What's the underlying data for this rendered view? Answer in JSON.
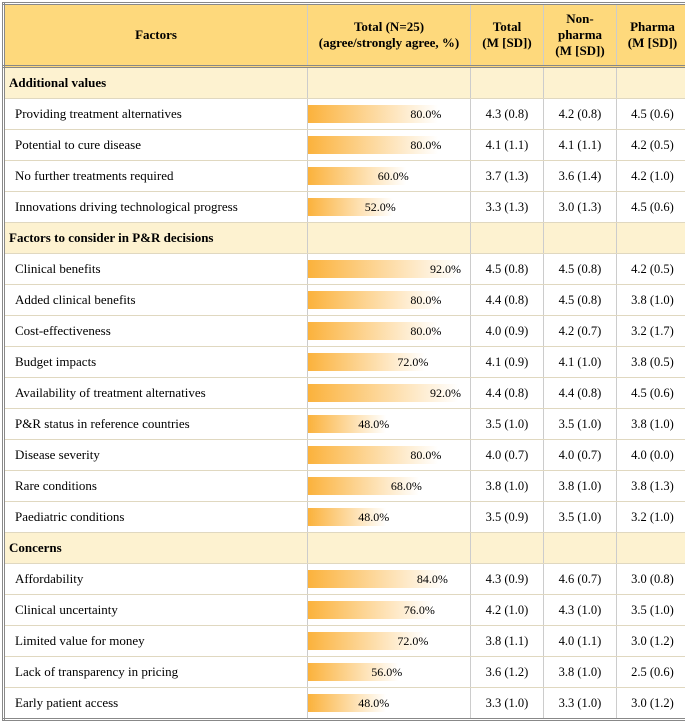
{
  "colors": {
    "header_bg": "#fed97c",
    "section_bg": "#fdf2d0",
    "bar_start": "#fbb23c",
    "bar_end": "#ffffff",
    "border_outer": "#888888",
    "border_inner": "#cccccc",
    "row_border": "#e0d8c0"
  },
  "columns": {
    "factors": "Factors",
    "total_pct": "Total (N=25)\n(agree/strongly agree, %)",
    "total_m": "Total\n(M [SD])",
    "nonpharma_m": "Non-pharma\n(M [SD])",
    "pharma_m": "Pharma\n(M [SD])"
  },
  "sections": [
    {
      "title": "Additional values",
      "rows": [
        {
          "factor": "Providing treatment alternatives",
          "pct": 80.0,
          "total": "4.3 (0.8)",
          "nonpharma": "4.2 (0.8)",
          "pharma": "4.5 (0.6)"
        },
        {
          "factor": "Potential to cure disease",
          "pct": 80.0,
          "total": "4.1 (1.1)",
          "nonpharma": "4.1 (1.1)",
          "pharma": "4.2 (0.5)"
        },
        {
          "factor": "No further treatments required",
          "pct": 60.0,
          "total": "3.7 (1.3)",
          "nonpharma": "3.6 (1.4)",
          "pharma": "4.2 (1.0)"
        },
        {
          "factor": "Innovations driving technological progress",
          "pct": 52.0,
          "total": "3.3 (1.3)",
          "nonpharma": "3.0 (1.3)",
          "pharma": "4.5 (0.6)"
        }
      ]
    },
    {
      "title": "Factors to consider in P&R decisions",
      "rows": [
        {
          "factor": "Clinical benefits",
          "pct": 92.0,
          "total": "4.5 (0.8)",
          "nonpharma": "4.5 (0.8)",
          "pharma": "4.2 (0.5)"
        },
        {
          "factor": "Added clinical benefits",
          "pct": 80.0,
          "total": "4.4 (0.8)",
          "nonpharma": "4.5 (0.8)",
          "pharma": "3.8 (1.0)"
        },
        {
          "factor": "Cost-effectiveness",
          "pct": 80.0,
          "total": "4.0 (0.9)",
          "nonpharma": "4.2 (0.7)",
          "pharma": "3.2 (1.7)"
        },
        {
          "factor": "Budget impacts",
          "pct": 72.0,
          "total": "4.1 (0.9)",
          "nonpharma": "4.1 (1.0)",
          "pharma": "3.8 (0.5)"
        },
        {
          "factor": "Availability of treatment alternatives",
          "pct": 92.0,
          "total": "4.4 (0.8)",
          "nonpharma": "4.4 (0.8)",
          "pharma": "4.5 (0.6)"
        },
        {
          "factor": "P&R status in reference countries",
          "pct": 48.0,
          "total": "3.5 (1.0)",
          "nonpharma": "3.5 (1.0)",
          "pharma": "3.8 (1.0)"
        },
        {
          "factor": "Disease severity",
          "pct": 80.0,
          "total": "4.0 (0.7)",
          "nonpharma": "4.0 (0.7)",
          "pharma": "4.0 (0.0)"
        },
        {
          "factor": "Rare conditions",
          "pct": 68.0,
          "total": "3.8 (1.0)",
          "nonpharma": "3.8 (1.0)",
          "pharma": "3.8 (1.3)"
        },
        {
          "factor": "Paediatric conditions",
          "pct": 48.0,
          "total": "3.5 (0.9)",
          "nonpharma": "3.5 (1.0)",
          "pharma": "3.2 (1.0)"
        }
      ]
    },
    {
      "title": "Concerns",
      "rows": [
        {
          "factor": "Affordability",
          "pct": 84.0,
          "total": "4.3 (0.9)",
          "nonpharma": "4.6 (0.7)",
          "pharma": "3.0 (0.8)"
        },
        {
          "factor": "Clinical uncertainty",
          "pct": 76.0,
          "total": "4.2 (1.0)",
          "nonpharma": "4.3 (1.0)",
          "pharma": "3.5 (1.0)"
        },
        {
          "factor": "Limited value for money",
          "pct": 72.0,
          "total": "3.8 (1.1)",
          "nonpharma": "4.0 (1.1)",
          "pharma": "3.0 (1.2)"
        },
        {
          "factor": "Lack of transparency in pricing",
          "pct": 56.0,
          "total": "3.6 (1.2)",
          "nonpharma": "3.8 (1.0)",
          "pharma": "2.5 (0.6)"
        },
        {
          "factor": "Early patient access",
          "pct": 48.0,
          "total": "3.3 (1.0)",
          "nonpharma": "3.3 (1.0)",
          "pharma": "3.0 (1.2)"
        }
      ]
    }
  ]
}
